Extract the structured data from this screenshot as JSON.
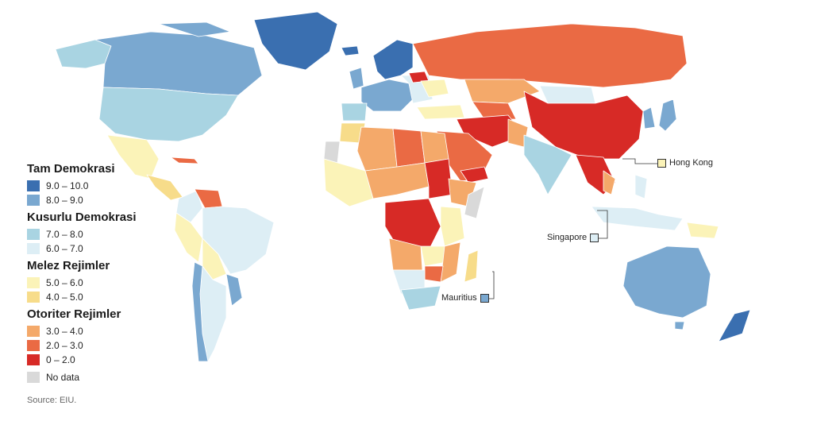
{
  "legend": {
    "groups": [
      {
        "title": "Tam Demokrasi",
        "items": [
          {
            "label": "9.0 – 10.0",
            "color": "#3a6fb0"
          },
          {
            "label": "8.0 – 9.0",
            "color": "#7aa8d0"
          }
        ]
      },
      {
        "title": "Kusurlu Demokrasi",
        "items": [
          {
            "label": "7.0 – 8.0",
            "color": "#a9d4e2"
          },
          {
            "label": "6.0 – 7.0",
            "color": "#ddeef5"
          }
        ]
      },
      {
        "title": "Melez Rejimler",
        "items": [
          {
            "label": "5.0 – 6.0",
            "color": "#fbf3b8"
          },
          {
            "label": "4.0 – 5.0",
            "color": "#f7dc8a"
          }
        ]
      },
      {
        "title": "Otoriter Rejimler",
        "items": [
          {
            "label": "3.0 – 4.0",
            "color": "#f4a96a"
          },
          {
            "label": "2.0 – 3.0",
            "color": "#ea6a44"
          },
          {
            "label": "0 – 2.0",
            "color": "#d72a26"
          }
        ]
      }
    ],
    "no_data": {
      "label": "No data",
      "color": "#d9d9d9"
    }
  },
  "source": "Source: EIU.",
  "callouts": {
    "hong_kong": {
      "label": "Hong Kong",
      "color": "#fbf3b8"
    },
    "singapore": {
      "label": "Singapore",
      "color": "#ddeef5"
    },
    "mauritius": {
      "label": "Mauritius",
      "color": "#7aa8d0"
    }
  }
}
